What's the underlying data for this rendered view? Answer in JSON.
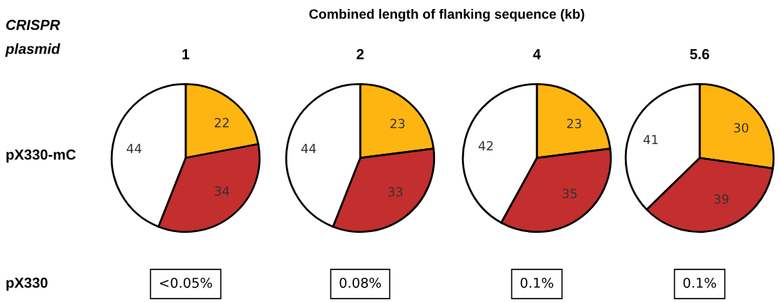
{
  "chart_data": [
    {
      "type": "other",
      "title": "Combined length of flanking sequence (kb)",
      "annotations": [
        "CRISPR\nplasmid",
        "pX330-mC",
        "pX330"
      ]
    },
    {
      "type": "pie",
      "title": "1",
      "categories": [
        null,
        null,
        null
      ],
      "values": [
        22,
        34,
        44
      ],
      "colors": [
        "#ffb511",
        "#c32e2e",
        "#ffffff"
      ],
      "data_labels": true,
      "annotations": [
        "<0.05%"
      ]
    },
    {
      "type": "pie",
      "title": "2",
      "categories": [
        null,
        null,
        null
      ],
      "values": [
        23,
        33,
        44
      ],
      "colors": [
        "#ffb511",
        "#c32e2e",
        "#ffffff"
      ],
      "data_labels": true,
      "annotations": [
        "0.08%"
      ]
    },
    {
      "type": "pie",
      "title": "4",
      "categories": [
        null,
        null,
        null
      ],
      "values": [
        23,
        35,
        42
      ],
      "colors": [
        "#ffb511",
        "#c32e2e",
        "#ffffff"
      ],
      "data_labels": true,
      "annotations": [
        "0.1%"
      ]
    },
    {
      "type": "pie",
      "title": "5.6",
      "categories": [
        null,
        null,
        null
      ],
      "values": [
        30,
        39,
        41
      ],
      "colors": [
        "#ffb511",
        "#c32e2e",
        "#ffffff"
      ],
      "data_labels": true,
      "annotations": [
        "0.1%"
      ]
    }
  ]
}
